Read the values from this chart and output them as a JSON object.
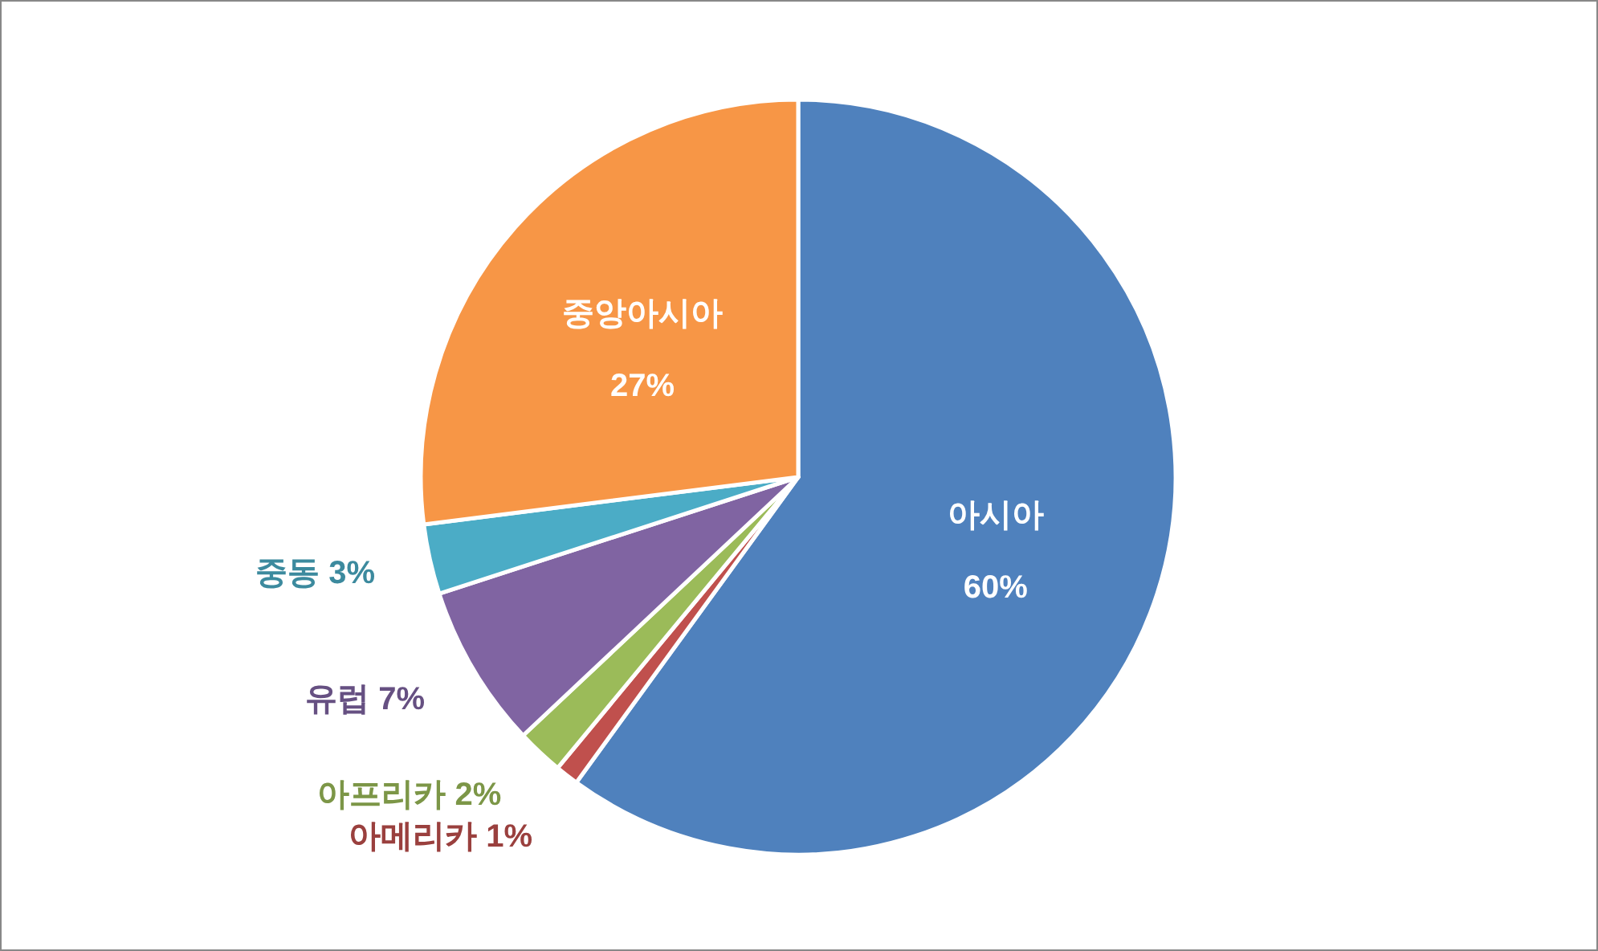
{
  "chart_data": {
    "type": "pie",
    "categories": [
      "아시아",
      "아메리카",
      "아프리카",
      "유럽",
      "중동",
      "중앙아시아"
    ],
    "values": [
      60,
      1,
      2,
      7,
      3,
      27
    ],
    "colors": [
      "#4f81bd",
      "#c0504d",
      "#9bbb59",
      "#8064a2",
      "#4bacc6",
      "#f79646"
    ],
    "value_labels": [
      "60%",
      "1%",
      "2%",
      "7%",
      "3%",
      "27%"
    ]
  }
}
